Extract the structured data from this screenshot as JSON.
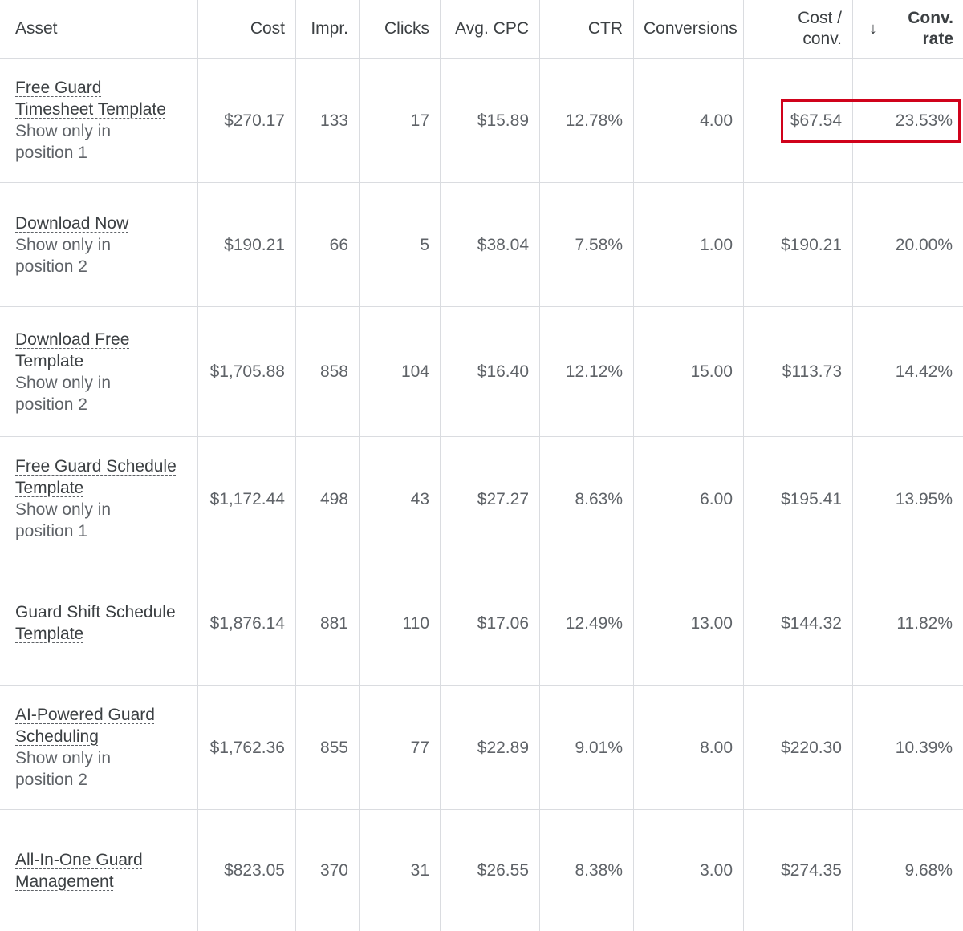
{
  "table": {
    "headers": {
      "asset": "Asset",
      "cost": "Cost",
      "impr": "Impr.",
      "clicks": "Clicks",
      "avg_cpc": "Avg. CPC",
      "ctr": "CTR",
      "conversions": "Conversions",
      "cost_per_conv_line1": "Cost /",
      "cost_per_conv_line2": "conv.",
      "sort_arrow": "↓",
      "conv_rate_line1": "Conv.",
      "conv_rate_line2": "rate"
    },
    "sort": {
      "column": "conv_rate",
      "direction": "descending",
      "icon": "arrow-down-icon"
    },
    "rows": [
      {
        "name": [
          "Free Guard",
          "Timesheet Template"
        ],
        "position": [
          "Show only in",
          "position 1"
        ],
        "cost": "$270.17",
        "impr": "133",
        "clicks": "17",
        "avg_cpc": "$15.89",
        "ctr": "12.78%",
        "conversions": "4.00",
        "cost_per_conv": "$67.54",
        "conv_rate": "23.53%"
      },
      {
        "name": [
          "Download Now"
        ],
        "position": [
          "Show only in",
          "position 2"
        ],
        "cost": "$190.21",
        "impr": "66",
        "clicks": "5",
        "avg_cpc": "$38.04",
        "ctr": "7.58%",
        "conversions": "1.00",
        "cost_per_conv": "$190.21",
        "conv_rate": "20.00%"
      },
      {
        "name": [
          "Download Free",
          "Template"
        ],
        "position": [
          "Show only in",
          "position 2"
        ],
        "cost": "$1,705.88",
        "impr": "858",
        "clicks": "104",
        "avg_cpc": "$16.40",
        "ctr": "12.12%",
        "conversions": "15.00",
        "cost_per_conv": "$113.73",
        "conv_rate": "14.42%"
      },
      {
        "name": [
          "Free Guard Schedule",
          "Template"
        ],
        "position": [
          "Show only in",
          "position 1"
        ],
        "cost": "$1,172.44",
        "impr": "498",
        "clicks": "43",
        "avg_cpc": "$27.27",
        "ctr": "8.63%",
        "conversions": "6.00",
        "cost_per_conv": "$195.41",
        "conv_rate": "13.95%"
      },
      {
        "name": [
          "Guard Shift Schedule",
          "Template"
        ],
        "position": [],
        "cost": "$1,876.14",
        "impr": "881",
        "clicks": "110",
        "avg_cpc": "$17.06",
        "ctr": "12.49%",
        "conversions": "13.00",
        "cost_per_conv": "$144.32",
        "conv_rate": "11.82%"
      },
      {
        "name": [
          "AI-Powered Guard",
          "Scheduling"
        ],
        "position": [
          "Show only in",
          "position 2"
        ],
        "cost": "$1,762.36",
        "impr": "855",
        "clicks": "77",
        "avg_cpc": "$22.89",
        "ctr": "9.01%",
        "conversions": "8.00",
        "cost_per_conv": "$220.30",
        "conv_rate": "10.39%"
      },
      {
        "name": [
          "All-In-One Guard",
          "Management"
        ],
        "position": [],
        "cost": "$823.05",
        "impr": "370",
        "clicks": "31",
        "avg_cpc": "$26.55",
        "ctr": "8.38%",
        "conversions": "3.00",
        "cost_per_conv": "$274.35",
        "conv_rate": "9.68%"
      }
    ]
  },
  "highlight": {
    "color": "#d0021b",
    "row_index": 0,
    "columns": [
      "cost_per_conv",
      "conv_rate"
    ]
  }
}
